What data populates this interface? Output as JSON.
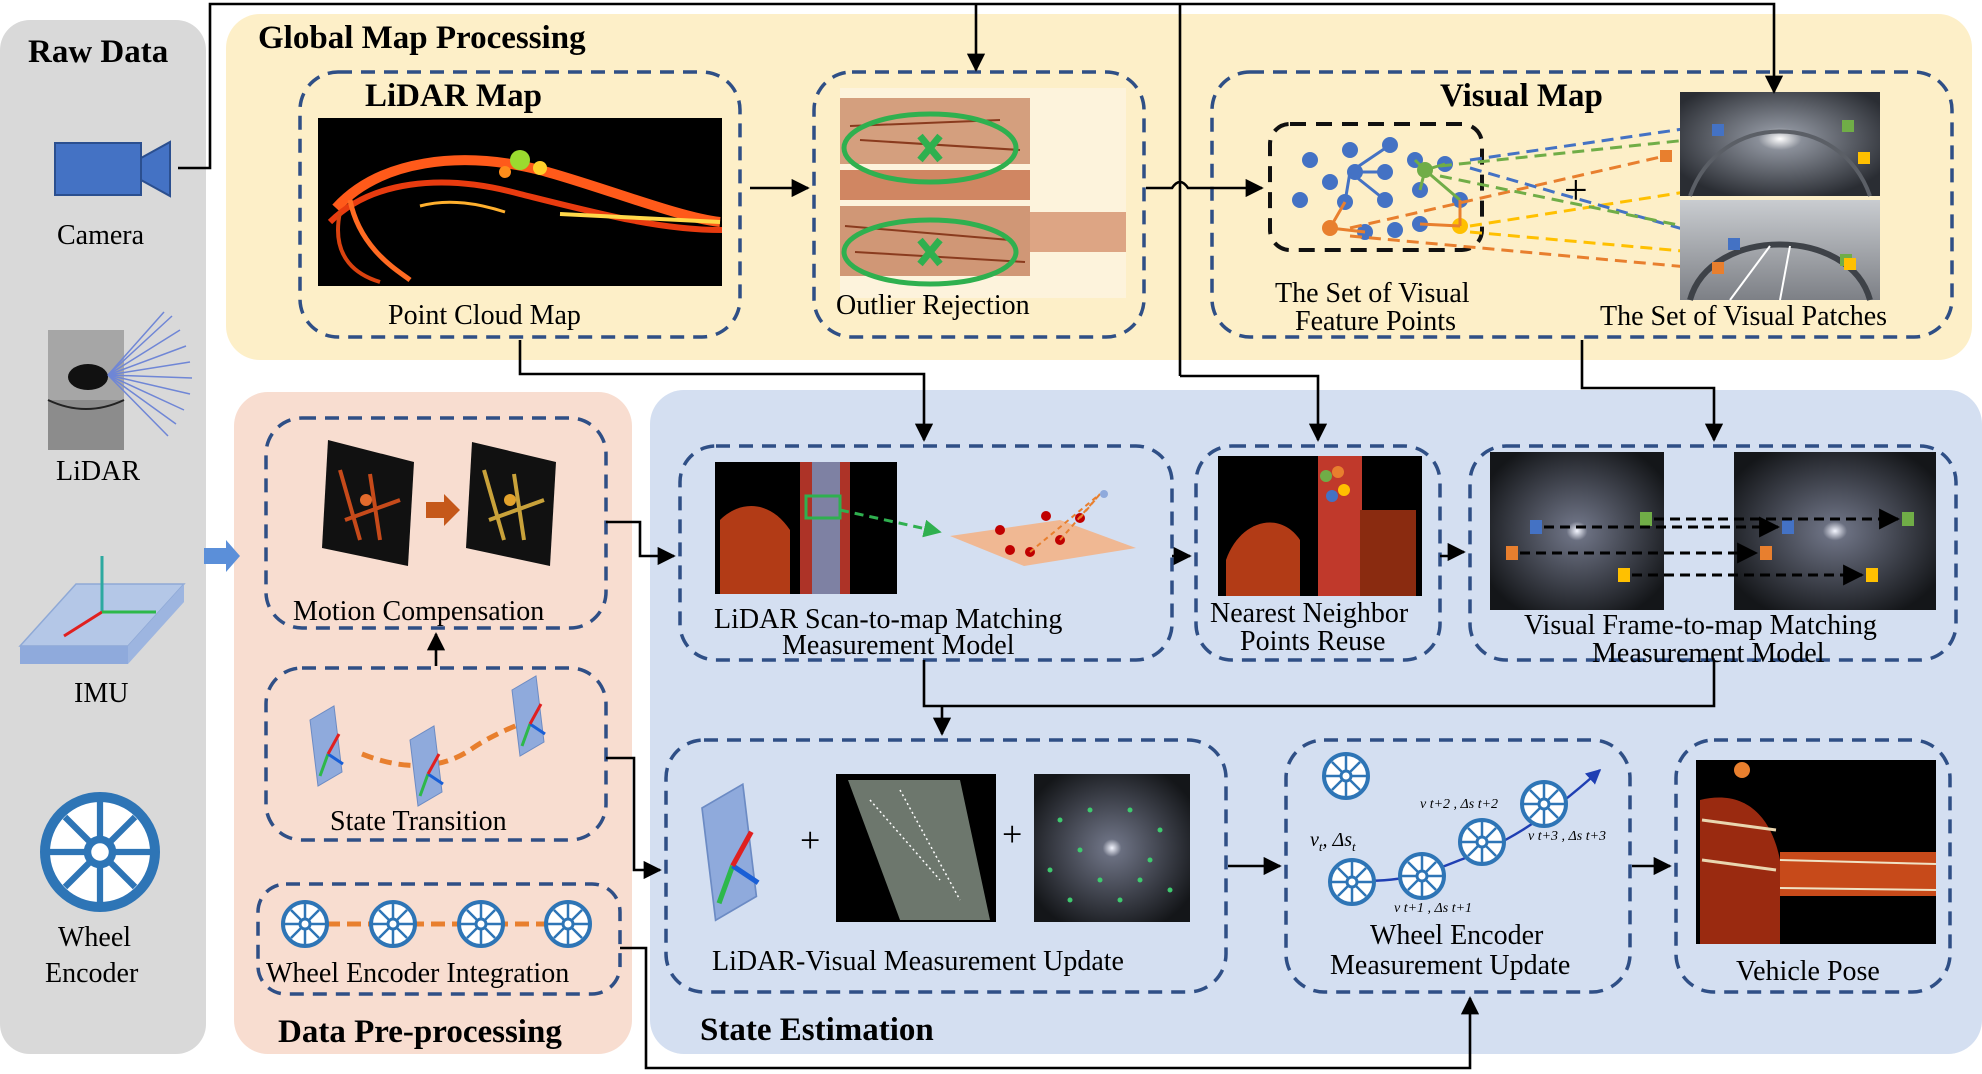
{
  "colors": {
    "raw_bg": "#d9d9d9",
    "global_bg": "#fdefc8",
    "pre_bg": "#f8ddd0",
    "state_bg": "#d4dff1",
    "box_border": "#2f4f86",
    "sensor_blue": "#4472c4",
    "wheel_blue": "#2e75b6",
    "arrow_orange": "#e87f2e"
  },
  "sections": {
    "raw_data": "Raw Data",
    "global_map": "Global Map Processing",
    "pre_processing": "Data Pre-processing",
    "state_estimation": "State Estimation"
  },
  "sensors": {
    "camera": "Camera",
    "lidar": "LiDAR",
    "imu": "IMU",
    "wheel_line1": "Wheel",
    "wheel_line2": "Encoder"
  },
  "global_map": {
    "lidar_map_title": "LiDAR Map",
    "point_cloud_caption": "Point Cloud Map",
    "outlier_caption": "Outlier Rejection",
    "visual_map_title": "Visual Map",
    "feature_caption_line1": "The Set of Visual",
    "feature_caption_line2": "Feature Points",
    "patches_caption": "The Set of Visual Patches",
    "plus": "+"
  },
  "pre_processing": {
    "motion_caption": "Motion Compensation",
    "state_caption": "State Transition",
    "wheel_caption": "Wheel Encoder Integration"
  },
  "state_estimation": {
    "scan_caption_line1": "LiDAR Scan-to-map Matching",
    "scan_caption_line2": "Measurement Model",
    "nn_caption_line1": "Nearest Neighbor",
    "nn_caption_line2": "Points Reuse",
    "vis_caption_line1": "Visual Frame-to-map Matching",
    "vis_caption_line2": "Measurement Model",
    "update_caption": "LiDAR-Visual Measurement Update",
    "plus": "+",
    "wheel_update_line1": "Wheel Encoder",
    "wheel_update_line2": "Measurement Update",
    "pose_caption": "Vehicle Pose",
    "label_t_v": "v",
    "label_t_sub": "t",
    "label_t_ds": ", Δs",
    "label_t1": "v t+1 , Δs t+1",
    "label_t2": "v t+2 , Δs t+2",
    "label_t3": "v t+3 , Δs t+3"
  },
  "icons": [
    "camera-icon",
    "lidar-icon",
    "imu-icon",
    "wheel-icon",
    "coordinate-frame-icon",
    "plus-icon",
    "arrow-icon"
  ]
}
